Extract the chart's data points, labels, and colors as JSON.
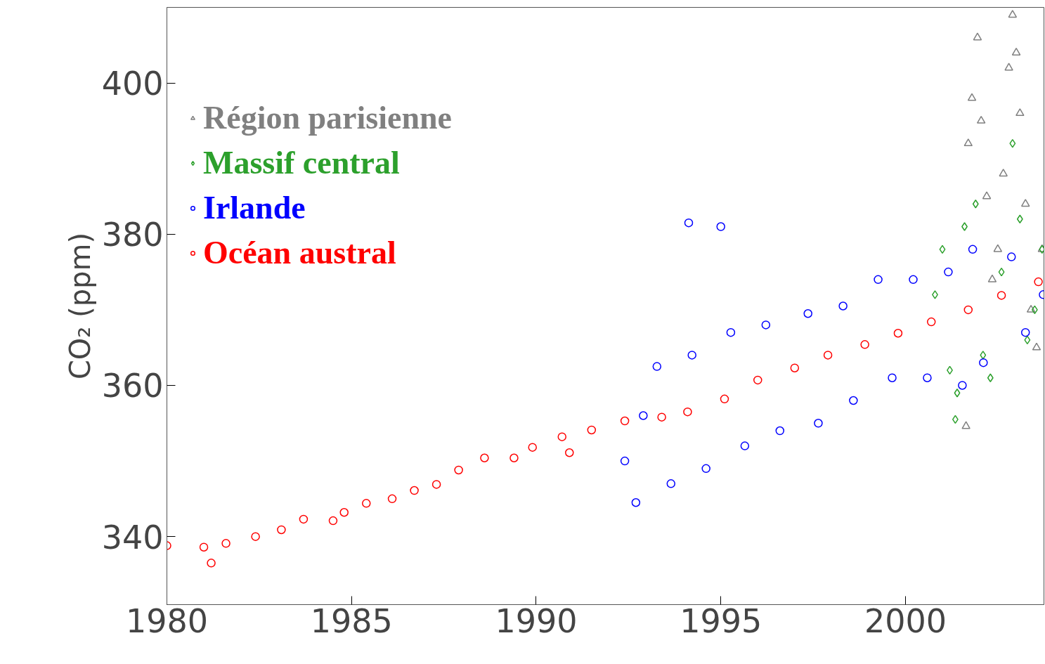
{
  "chart_data": {
    "type": "scatter",
    "ylabel": "CO₂ (ppm)",
    "xlim": [
      1980,
      2003.75
    ],
    "ylim": [
      331,
      410
    ],
    "xticks": [
      1980,
      1985,
      1990,
      1995,
      2000
    ],
    "yticks": [
      340,
      360,
      380,
      400
    ],
    "grid": false,
    "legend": "top left",
    "series": [
      {
        "name": "Région parisienne",
        "color": "#808080",
        "marker": "triangle",
        "x": [
          2001.64,
          2001.7,
          2001.8,
          2001.95,
          2002.05,
          2002.2,
          2002.35,
          2002.5,
          2002.65,
          2002.8,
          2002.9,
          2003.0,
          2003.1,
          2003.25,
          2003.4,
          2003.55,
          2003.7
        ],
        "values": [
          354.6,
          392,
          398,
          406,
          395,
          385,
          374,
          378,
          388,
          402,
          409,
          404,
          396,
          384,
          370,
          365,
          378
        ]
      },
      {
        "name": "Massif central",
        "color": "#2ca02c",
        "marker": "diamond",
        "x": [
          2000.8,
          2001.0,
          2001.2,
          2001.35,
          2001.4,
          2001.6,
          2001.9,
          2002.1,
          2002.3,
          2002.6,
          2002.9,
          2003.1,
          2003.3,
          2003.5,
          2003.7
        ],
        "values": [
          372,
          378,
          362,
          355.5,
          359,
          381,
          384,
          364,
          361,
          375,
          392,
          382,
          366,
          370,
          378
        ]
      },
      {
        "name": "Irlande",
        "color": "#0000ff",
        "marker": "circle",
        "x": [
          1992.4,
          1992.7,
          1992.9,
          1993.27,
          1993.65,
          1994.13,
          1994.22,
          1994.6,
          1995.0,
          1995.27,
          1995.65,
          1996.22,
          1996.6,
          1997.36,
          1997.64,
          1998.31,
          1998.59,
          1999.26,
          1999.64,
          2000.21,
          2000.59,
          2001.16,
          2001.54,
          2001.82,
          2002.11,
          2002.87,
          2003.25,
          2003.73
        ],
        "values": [
          350,
          344.5,
          356,
          362.5,
          347,
          381.5,
          364,
          349,
          381,
          367,
          352,
          368,
          354,
          369.5,
          355,
          370.5,
          358,
          374,
          361,
          374,
          361,
          375,
          360,
          378,
          363,
          377,
          367,
          372
        ]
      },
      {
        "name": "Océan austral",
        "color": "#ff0000",
        "marker": "circle",
        "x": [
          1980.0,
          1981.0,
          1981.2,
          1981.6,
          1982.4,
          1983.1,
          1983.7,
          1984.5,
          1984.8,
          1985.4,
          1986.1,
          1986.7,
          1987.3,
          1987.9,
          1988.6,
          1989.4,
          1989.9,
          1990.7,
          1990.9,
          1991.5,
          1992.4,
          1993.4,
          1994.1,
          1995.1,
          1996.0,
          1997.0,
          1997.9,
          1998.9,
          1999.8,
          2000.7,
          2001.7,
          2002.6,
          2003.6
        ],
        "values": [
          338.8,
          338.6,
          336.5,
          339.1,
          340.0,
          340.9,
          342.3,
          342.1,
          343.2,
          344.4,
          345.0,
          346.1,
          346.9,
          348.8,
          350.4,
          350.4,
          351.8,
          353.2,
          351.1,
          354.1,
          355.3,
          355.8,
          356.5,
          358.2,
          360.7,
          362.3,
          364.0,
          365.4,
          366.9,
          368.4,
          370.0,
          371.9,
          373.7
        ]
      }
    ]
  }
}
